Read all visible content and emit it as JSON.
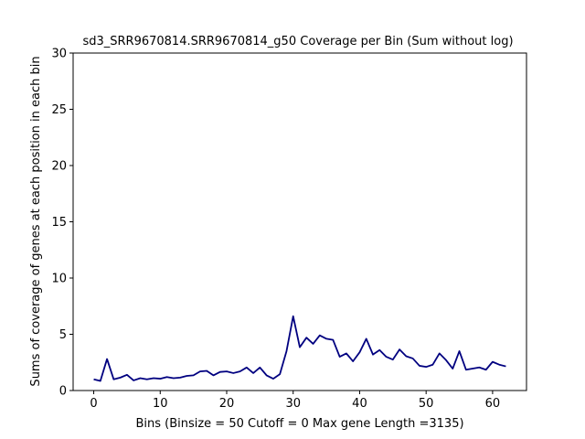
{
  "chart_data": {
    "type": "line",
    "title": "sd3_SRR9670814.SRR9670814_g50 Coverage per Bin (Sum without log)",
    "xlabel": "Bins  (Binsize = 50 Cutoff = 0 Max gene Length =3135)",
    "ylabel": "Sums of coverage of genes at each position in each bin",
    "xlim": [
      -3.1,
      65.1
    ],
    "ylim": [
      0,
      30
    ],
    "xticks": [
      0,
      10,
      20,
      30,
      40,
      50,
      60
    ],
    "yticks": [
      0,
      5,
      10,
      15,
      20,
      25,
      30
    ],
    "grid": false,
    "line_color": "#000080",
    "series": [
      {
        "x": [
          0,
          1,
          2,
          3,
          4,
          5,
          6,
          7,
          8,
          9,
          10,
          11,
          12,
          13,
          14,
          15,
          16,
          17,
          18,
          19,
          20,
          21,
          22,
          23,
          24,
          25,
          26,
          27,
          28,
          29,
          30,
          31,
          32,
          33,
          34,
          35,
          36,
          37,
          38,
          39,
          40,
          41,
          42,
          43,
          44,
          45,
          46,
          47,
          48,
          49,
          50,
          51,
          52,
          53,
          54,
          55,
          56,
          57,
          58,
          59,
          60,
          61,
          62
        ],
        "values": [
          1.0,
          0.85,
          2.8,
          1.0,
          1.15,
          1.4,
          0.9,
          1.1,
          1.0,
          1.1,
          1.05,
          1.2,
          1.1,
          1.15,
          1.3,
          1.35,
          1.7,
          1.75,
          1.35,
          1.65,
          1.7,
          1.55,
          1.7,
          2.05,
          1.55,
          2.05,
          1.35,
          1.05,
          1.45,
          3.5,
          6.6,
          3.85,
          4.7,
          4.15,
          4.9,
          4.6,
          4.5,
          3.0,
          3.3,
          2.6,
          3.4,
          4.6,
          3.2,
          3.6,
          3.0,
          2.75,
          3.65,
          3.05,
          2.85,
          2.2,
          2.1,
          2.3,
          3.3,
          2.7,
          1.95,
          3.5,
          1.85,
          1.95,
          2.05,
          1.85,
          2.55,
          2.3,
          2.15
        ]
      }
    ]
  }
}
